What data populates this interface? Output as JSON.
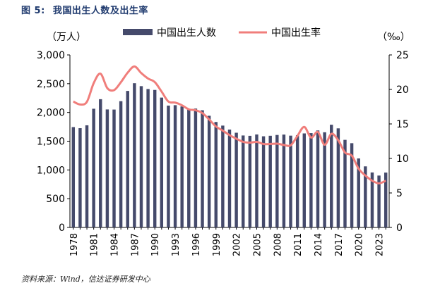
{
  "figure": {
    "label": "图 5:",
    "title": "我国出生人数及出生率"
  },
  "source": "资料来源：Wind，信达证券研发中心",
  "chart_data": {
    "type": "bar+line",
    "left_axis_label": "（万人）",
    "right_axis_label": "（‰）",
    "left_ylim": [
      0,
      3000
    ],
    "left_ticks": [
      "0",
      "500",
      "1,000",
      "1,500",
      "2,000",
      "2,500",
      "3,000"
    ],
    "left_tick_values": [
      0,
      500,
      1000,
      1500,
      2000,
      2500,
      3000
    ],
    "right_ylim": [
      0,
      25
    ],
    "right_ticks": [
      "0",
      "5",
      "10",
      "15",
      "20",
      "25"
    ],
    "right_tick_values": [
      0,
      5,
      10,
      15,
      20,
      25
    ],
    "x_tick_labels": [
      "1978",
      "1981",
      "1984",
      "1987",
      "1990",
      "1993",
      "1996",
      "1999",
      "2002",
      "2005",
      "2008",
      "2011",
      "2014",
      "2017",
      "2020",
      "2023"
    ],
    "x_tick_years": [
      1978,
      1981,
      1984,
      1987,
      1990,
      1993,
      1996,
      1999,
      2002,
      2005,
      2008,
      2011,
      2014,
      2017,
      2020,
      2023
    ],
    "years": [
      1978,
      1979,
      1980,
      1981,
      1982,
      1983,
      1984,
      1985,
      1986,
      1987,
      1988,
      1989,
      1990,
      1991,
      1992,
      1993,
      1994,
      1995,
      1996,
      1997,
      1998,
      1999,
      2000,
      2001,
      2002,
      2003,
      2004,
      2005,
      2006,
      2007,
      2008,
      2009,
      2010,
      2011,
      2012,
      2013,
      2014,
      2015,
      2016,
      2017,
      2018,
      2019,
      2020,
      2021,
      2022,
      2023,
      2024
    ],
    "series": [
      {
        "name": "中国出生人数",
        "kind": "bar",
        "axis": "left",
        "color": "#454a6b",
        "values": [
          1745,
          1726,
          1776,
          2064,
          2230,
          2052,
          2050,
          2196,
          2374,
          2508,
          2457,
          2407,
          2391,
          2258,
          2119,
          2126,
          2104,
          2063,
          2067,
          2038,
          1942,
          1834,
          1771,
          1702,
          1647,
          1599,
          1593,
          1617,
          1585,
          1594,
          1608,
          1615,
          1596,
          1604,
          1635,
          1640,
          1687,
          1655,
          1786,
          1723,
          1523,
          1465,
          1200,
          1062,
          956,
          902,
          954
        ]
      },
      {
        "name": "中国出生率",
        "kind": "line",
        "axis": "right",
        "color": "#f07e7b",
        "values": [
          18.25,
          17.82,
          18.21,
          20.91,
          22.28,
          20.19,
          19.9,
          21.04,
          22.43,
          23.33,
          22.37,
          21.58,
          21.06,
          19.68,
          18.24,
          18.09,
          17.7,
          17.12,
          16.98,
          16.57,
          15.64,
          14.64,
          14.03,
          13.38,
          12.86,
          12.41,
          12.29,
          12.4,
          12.09,
          12.1,
          12.14,
          11.95,
          11.9,
          13.27,
          14.57,
          13.03,
          13.83,
          11.99,
          13.57,
          12.64,
          10.86,
          10.41,
          8.52,
          7.52,
          6.77,
          6.39,
          6.77
        ]
      }
    ]
  }
}
